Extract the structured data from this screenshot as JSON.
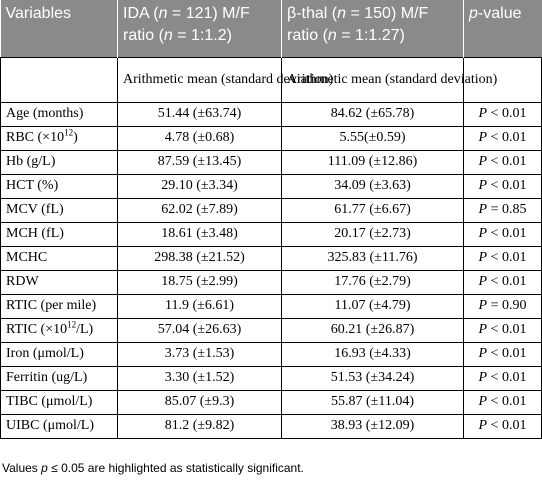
{
  "headers": [
    {
      "pre": "Variables",
      "ital": "",
      "post": ""
    },
    {
      "pre": "IDA (",
      "ital": "n",
      "post": " = 121) M/F ratio (",
      "ital2": "n",
      "post2": " = 1:1.2)"
    },
    {
      "pre": "β-thal (",
      "ital": "n",
      "post": " = 150) M/F ratio (",
      "ital2": "n",
      "post2": " = 1:1.27)"
    },
    {
      "pre": "",
      "ital": "p",
      "post": "-value"
    }
  ],
  "subheader": {
    "col2": "Arithmetic mean (standard deviation)",
    "col3": "Arithmetic mean (standard deviation)"
  },
  "rows": [
    {
      "pre": "Age (months)",
      "sup": "",
      "post": "",
      "ida": "51.44 (±63.74)",
      "thal": "84.62 (±65.78)",
      "op": " < 0.01"
    },
    {
      "pre": "RBC (×10",
      "sup": "12",
      "post": ")",
      "ida": "4.78 (±0.68)",
      "thal": "5.55(±0.59)",
      "op": " < 0.01"
    },
    {
      "pre": "Hb (g/L)",
      "sup": "",
      "post": "",
      "ida": "87.59 (±13.45)",
      "thal": "111.09 (±12.86)",
      "op": " < 0.01"
    },
    {
      "pre": "HCT (%)",
      "sup": "",
      "post": "",
      "ida": "29.10 (±3.34)",
      "thal": "34.09 (±3.63)",
      "op": " < 0.01"
    },
    {
      "pre": "MCV (fL)",
      "sup": "",
      "post": "",
      "ida": "62.02 (±7.89)",
      "thal": "61.77 (±6.67)",
      "op": " = 0.85"
    },
    {
      "pre": "MCH (fL)",
      "sup": "",
      "post": "",
      "ida": "18.61 (±3.48)",
      "thal": "20.17 (±2.73)",
      "op": " < 0.01"
    },
    {
      "pre": "MCHC",
      "sup": "",
      "post": "",
      "ida": "298.38 (±21.52)",
      "thal": "325.83 (±11.76)",
      "op": " < 0.01"
    },
    {
      "pre": "RDW",
      "sup": "",
      "post": "",
      "ida": "18.75 (±2.99)",
      "thal": "17.76 (±2.79)",
      "op": " < 0.01"
    },
    {
      "pre": "RTIC (per mile)",
      "sup": "",
      "post": "",
      "ida": "11.9 (±6.61)",
      "thal": "11.07 (±4.79)",
      "op": " = 0.90"
    },
    {
      "pre": "RTIC (×10",
      "sup": "12",
      "post": "/L)",
      "ida": "57.04 (±26.63)",
      "thal": "60.21 (±26.87)",
      "op": " < 0.01"
    },
    {
      "pre": "Iron (μmol/L)",
      "sup": "",
      "post": "",
      "ida": "3.73 (±1.53)",
      "thal": "16.93 (±4.33)",
      "op": " < 0.01"
    },
    {
      "pre": "Ferritin (ug/L)",
      "sup": "",
      "post": "",
      "ida": "3.30 (±1.52)",
      "thal": "51.53 (±34.24)",
      "op": " < 0.01"
    },
    {
      "pre": "TIBC (μmol/L)",
      "sup": "",
      "post": "",
      "ida": "85.07 (±9.3)",
      "thal": "55.87 (±11.04)",
      "op": " < 0.01"
    },
    {
      "pre": "UIBC (μmol/L)",
      "sup": "",
      "post": "",
      "ida": "81.2 (±9.82)",
      "thal": "38.93 (±12.09)",
      "op": " < 0.01"
    }
  ],
  "p_letter": "P",
  "footnote": {
    "pre": "Values ",
    "ital": "p",
    "post": " ≤ 0.05 are highlighted as statistically significant."
  },
  "colors": {
    "header_bg": "#8a8a8a",
    "header_text": "#ffffff",
    "border": "#000000"
  }
}
